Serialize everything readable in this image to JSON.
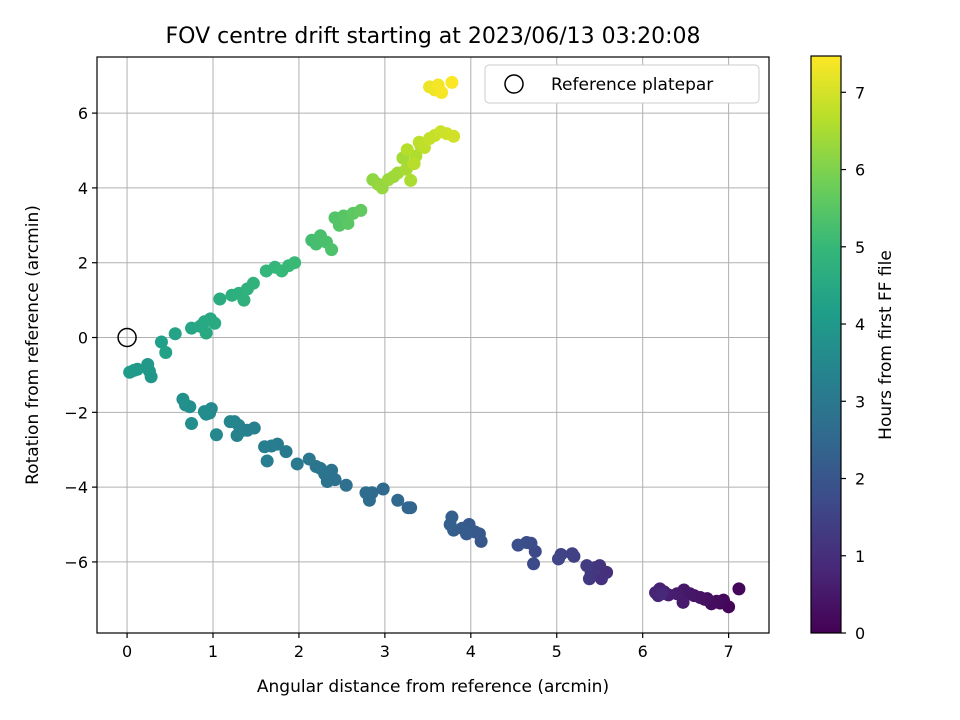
{
  "chart_data": {
    "type": "scatter",
    "title": "FOV centre drift starting at 2023/06/13 03:20:08",
    "xlabel": "Angular distance from reference (arcmin)",
    "ylabel": "Rotation from reference (arcmin)",
    "xlim": [
      -0.35,
      7.47
    ],
    "ylim": [
      -7.9,
      7.5
    ],
    "xticks": [
      0,
      1,
      2,
      3,
      4,
      5,
      6,
      7
    ],
    "yticks": [
      -6,
      -4,
      -2,
      0,
      2,
      4,
      6
    ],
    "grid": true,
    "legend": {
      "position": "top-right",
      "entries": [
        "Reference platepar"
      ]
    },
    "reference_point": {
      "x": 0,
      "y": 0,
      "label": "Reference platepar"
    },
    "colorbar": {
      "label": "Hours from first FF file",
      "range": [
        0,
        7.47
      ],
      "ticks": [
        0,
        1,
        2,
        3,
        4,
        5,
        6,
        7
      ],
      "colormap": "viridis",
      "stops": [
        "#440154",
        "#482878",
        "#3e4989",
        "#31688e",
        "#26828e",
        "#1f9e89",
        "#35b779",
        "#6ece58",
        "#b5de2b",
        "#fde725"
      ]
    },
    "series": [
      {
        "x": [
          7.0,
          7.12,
          6.94,
          6.9,
          6.86,
          6.8,
          6.75,
          6.72,
          6.67,
          6.6,
          6.55,
          6.48,
          6.47,
          6.4,
          6.3,
          6.25,
          6.2,
          6.15,
          6.18,
          6.22,
          5.58,
          5.52,
          5.5,
          5.45,
          5.4,
          5.38,
          5.35,
          5.2,
          5.18,
          5.05,
          5.02,
          4.75,
          4.73,
          4.7,
          4.65,
          4.55,
          4.12,
          4.1,
          4.05,
          3.98,
          3.95,
          3.9,
          3.8,
          3.78,
          3.76,
          3.3,
          3.27,
          3.15,
          2.98,
          2.85,
          2.82,
          2.78,
          2.55,
          2.42,
          2.38,
          2.33,
          2.3,
          2.25,
          2.2,
          2.12,
          1.98,
          1.85,
          1.75,
          1.68,
          1.63,
          1.6,
          1.48,
          1.4,
          1.35,
          1.3,
          1.28,
          1.25,
          1.2,
          1.04,
          0.98,
          0.96,
          0.92,
          0.9,
          0.75,
          0.73,
          0.68,
          0.65,
          0.28,
          0.26,
          0.24,
          0.12,
          0.08,
          0.03,
          0.4,
          0.45,
          0.56,
          0.75,
          0.85,
          0.9,
          0.92,
          0.97,
          1.02,
          1.08,
          1.22,
          1.3,
          1.36,
          1.4,
          1.47,
          1.62,
          1.72,
          1.8,
          1.88,
          1.95,
          2.15,
          2.2,
          2.25,
          2.32,
          2.38,
          2.42,
          2.47,
          2.52,
          2.57,
          2.63,
          2.72,
          2.86,
          2.92,
          2.97,
          3.04,
          3.1,
          3.15,
          3.21,
          3.25,
          3.3,
          3.36,
          3.42,
          3.26,
          3.34,
          3.4,
          3.46,
          3.52,
          3.58,
          3.65,
          3.72,
          3.8,
          3.52,
          3.58,
          3.62,
          3.66,
          3.78
        ],
        "y": [
          -7.2,
          -6.72,
          -7.02,
          -7.1,
          -7.05,
          -7.12,
          -6.98,
          -7.0,
          -6.95,
          -6.9,
          -6.85,
          -6.75,
          -7.08,
          -6.85,
          -6.88,
          -6.8,
          -6.72,
          -6.82,
          -6.9,
          -6.85,
          -6.28,
          -6.45,
          -6.1,
          -6.15,
          -6.3,
          -6.45,
          -6.1,
          -5.85,
          -5.78,
          -5.8,
          -5.92,
          -5.72,
          -6.05,
          -5.5,
          -5.48,
          -5.55,
          -5.45,
          -5.25,
          -5.2,
          -5.0,
          -5.25,
          -5.1,
          -5.15,
          -4.8,
          -5.0,
          -4.55,
          -4.55,
          -4.35,
          -4.05,
          -4.15,
          -4.35,
          -4.15,
          -3.95,
          -3.8,
          -3.55,
          -3.85,
          -3.65,
          -3.5,
          -3.45,
          -3.25,
          -3.38,
          -3.05,
          -2.85,
          -2.9,
          -3.3,
          -2.92,
          -2.42,
          -2.48,
          -2.48,
          -2.35,
          -2.62,
          -2.25,
          -2.25,
          -2.6,
          -1.9,
          -2.02,
          -2.05,
          -1.98,
          -2.3,
          -1.85,
          -1.8,
          -1.65,
          -1.05,
          -0.9,
          -0.72,
          -0.85,
          -0.88,
          -0.93,
          -0.12,
          -0.4,
          0.1,
          0.25,
          0.3,
          0.42,
          0.12,
          0.5,
          0.38,
          1.03,
          1.13,
          1.18,
          1.0,
          1.3,
          1.45,
          1.78,
          1.88,
          1.78,
          1.92,
          2.0,
          2.6,
          2.5,
          2.72,
          2.55,
          2.35,
          3.2,
          3.0,
          3.25,
          3.05,
          3.32,
          3.4,
          4.22,
          4.1,
          4.0,
          4.22,
          4.3,
          4.4,
          4.8,
          4.5,
          4.2,
          4.85,
          5.12,
          5.02,
          4.65,
          5.22,
          5.08,
          5.32,
          5.4,
          5.5,
          5.45,
          5.38,
          6.7,
          6.62,
          6.75,
          6.55,
          6.82
        ],
        "hours": [
          0.1,
          0.12,
          0.15,
          0.18,
          0.22,
          0.26,
          0.3,
          0.34,
          0.38,
          0.42,
          0.46,
          0.5,
          0.54,
          0.58,
          0.62,
          0.66,
          0.7,
          0.74,
          0.78,
          0.82,
          1.0,
          1.05,
          1.1,
          1.15,
          1.2,
          1.25,
          1.3,
          1.4,
          1.45,
          1.5,
          1.55,
          1.65,
          1.7,
          1.75,
          1.8,
          1.85,
          2.0,
          2.05,
          2.08,
          2.12,
          2.15,
          2.18,
          2.22,
          2.25,
          2.28,
          2.4,
          2.44,
          2.48,
          2.55,
          2.6,
          2.62,
          2.65,
          2.75,
          2.8,
          2.82,
          2.85,
          2.88,
          2.9,
          2.93,
          2.97,
          3.02,
          3.08,
          3.12,
          3.15,
          3.18,
          3.2,
          3.25,
          3.28,
          3.3,
          3.33,
          3.35,
          3.38,
          3.42,
          3.5,
          3.55,
          3.57,
          3.6,
          3.62,
          3.68,
          3.7,
          3.72,
          3.75,
          3.9,
          3.93,
          3.96,
          4.0,
          4.03,
          4.06,
          4.2,
          4.25,
          4.32,
          4.4,
          4.45,
          4.48,
          4.5,
          4.53,
          4.56,
          4.6,
          4.68,
          4.72,
          4.75,
          4.78,
          4.82,
          4.9,
          4.95,
          5.0,
          5.03,
          5.06,
          5.2,
          5.24,
          5.27,
          5.3,
          5.33,
          5.4,
          5.44,
          5.48,
          5.52,
          5.56,
          5.62,
          6.2,
          6.24,
          6.28,
          6.32,
          6.36,
          6.4,
          6.44,
          6.48,
          6.52,
          6.56,
          6.6,
          6.64,
          6.68,
          6.72,
          6.76,
          6.8,
          6.84,
          6.88,
          6.92,
          6.96,
          7.25,
          7.3,
          7.35,
          7.4,
          7.45
        ]
      }
    ]
  }
}
